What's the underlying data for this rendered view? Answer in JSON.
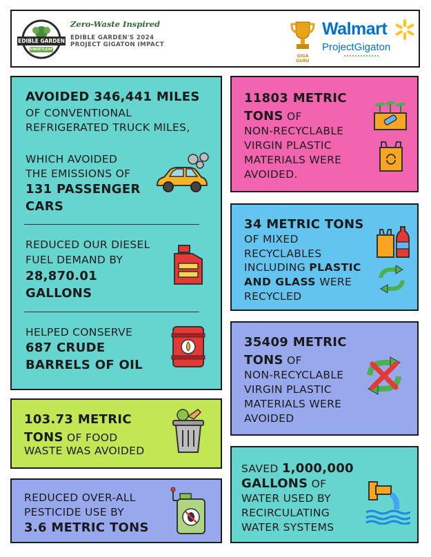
{
  "header": {
    "logo_top": "EDIBLE GARDEN",
    "logo_sub": "SWEETLEAF",
    "tagline": "Zero-Waste Inspired",
    "title_line1": "EDIBLE GARDEN'S 2024",
    "title_line2": "PROJECT GIGATON IMPACT",
    "giga_guru": "GIGA GURU",
    "walmart": "Walmart",
    "project_gigaton": "ProjectGigaton"
  },
  "cards": {
    "miles": {
      "bold1": "AVOIDED 346,441 MILES",
      "rest1": "OF CONVENTIONAL",
      "rest2": "REFRIGERATED TRUCK MILES,",
      "line3": "WHICH AVOIDED",
      "line4": "THE EMISSIONS OF",
      "bold2": "131 PASSENGER",
      "bold3": "CARS"
    },
    "diesel": {
      "line1": "REDUCED OUR DIESEL",
      "line2": "FUEL DEMAND BY",
      "bold1": "28,870.01",
      "bold2": "GALLONS"
    },
    "oil": {
      "line1": "HELPED CONSERVE",
      "bold1": "687 CRUDE",
      "bold2": "BARRELS OF OIL"
    },
    "plastic1": {
      "bold1": "11803 METRIC",
      "bold2": "TONS",
      "rest2": " OF",
      "line3": "NON-RECYCLABLE",
      "line4": "VIRGIN PLASTIC",
      "line5": "MATERIALS WERE",
      "line6": "AVOIDED."
    },
    "recycle": {
      "bold1": "34 METRIC TONS",
      "line2": "OF MIXED",
      "line3": "RECYCLABLES",
      "line4a": "INCLUDING ",
      "bold4": "PLASTIC",
      "bold5": "AND GLASS",
      "line5b": " WERE",
      "line6": "RECYCLED"
    },
    "plastic2": {
      "bold1": "35409 METRIC",
      "bold2": "TONS",
      "rest2": " OF",
      "line3": "NON-RECYCLABLE",
      "line4": "VIRGIN PLASTIC",
      "line5": "MATERIALS WERE",
      "line6": "AVOIDED"
    },
    "food": {
      "bold1": "103.73 METRIC",
      "bold2": "TONS",
      "rest2": " OF FOOD",
      "line3": "WASTE WAS AVOIDED"
    },
    "water": {
      "line1a": "SAVED ",
      "bold1": "1,000,000",
      "bold2": "GALLONS",
      "rest2": " OF",
      "line3": "WATER USED BY",
      "line4": "RECIRCULATING",
      "line5": "WATER SYSTEMS"
    },
    "pesticide": {
      "line1": "REDUCED OVER-ALL",
      "line2": "PESTICIDE USE BY",
      "bold1": "3.6 METRIC TONS"
    }
  },
  "colors": {
    "teal": "#66d4cf",
    "pink": "#f264b0",
    "blue": "#64c4f0",
    "periwinkle": "#98a8ec",
    "lime": "#c2e654",
    "walmart_blue": "#0071ce",
    "walmart_yellow": "#ffc220"
  }
}
